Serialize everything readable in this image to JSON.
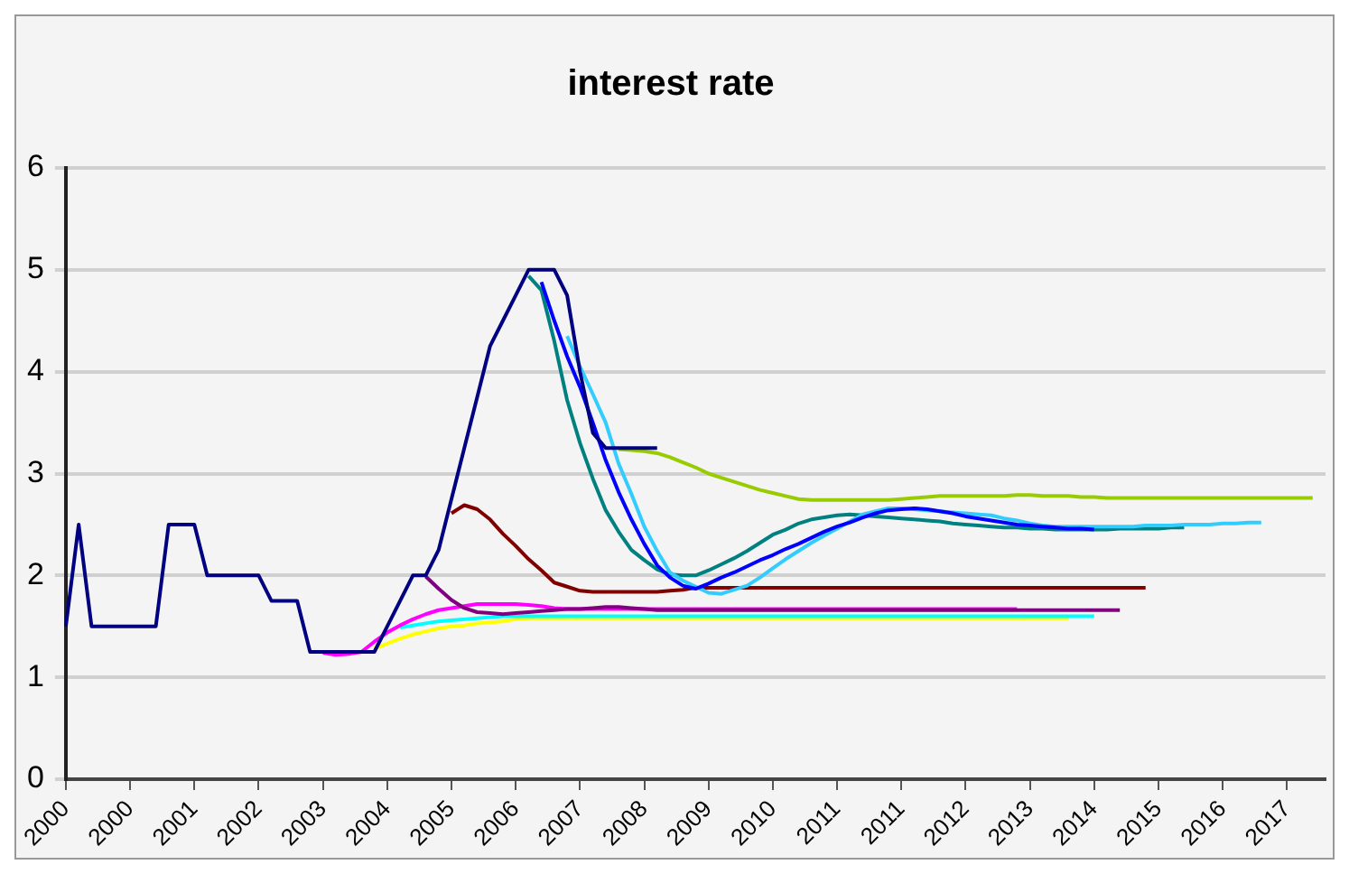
{
  "chart_data": {
    "type": "line",
    "title": "interest rate",
    "marker": "none",
    "grid": "y",
    "categories": [
      "2000",
      null,
      null,
      null,
      null,
      "2000",
      null,
      null,
      null,
      null,
      "2001",
      null,
      null,
      null,
      null,
      "2002",
      null,
      null,
      null,
      null,
      "2003",
      null,
      null,
      null,
      null,
      "2004",
      null,
      null,
      null,
      null,
      "2005",
      null,
      null,
      null,
      null,
      "2006",
      null,
      null,
      null,
      null,
      "2007",
      null,
      null,
      null,
      null,
      "2008",
      null,
      null,
      null,
      null,
      "2009",
      null,
      null,
      null,
      null,
      "2010",
      null,
      null,
      null,
      null,
      "2011",
      null,
      null,
      null,
      null,
      "2011",
      null,
      null,
      null,
      null,
      "2012",
      null,
      null,
      null,
      null,
      "2013",
      null,
      null,
      null,
      null,
      "2014",
      null,
      null,
      null,
      null,
      "2015",
      null,
      null,
      null,
      null,
      "2016",
      null,
      null,
      null,
      null,
      "2017",
      null,
      null,
      null
    ],
    "ylim": [
      0,
      6
    ],
    "yticks": [
      0,
      1,
      2,
      3,
      4,
      5,
      6
    ],
    "series": [
      {
        "color": "#000080",
        "values": [
          1.5,
          2.5,
          1.5,
          1.5,
          1.5,
          1.5,
          1.5,
          1.5,
          2.5,
          2.5,
          2.5,
          2,
          2,
          2,
          2,
          2,
          1.75,
          1.75,
          1.75,
          1.25,
          1.25,
          1.25,
          1.25,
          1.25,
          1.25,
          1.5,
          1.75,
          2,
          2,
          2.25,
          2.75,
          3.25,
          3.75,
          4.25,
          4.5,
          4.75,
          5,
          5,
          5,
          4.75,
          4,
          3.4,
          3.25,
          3.25,
          3.25,
          3.25,
          3.25,
          null,
          null,
          null,
          null,
          null,
          null,
          null,
          null,
          null,
          null,
          null,
          null,
          null,
          null,
          null,
          null,
          null,
          null,
          null,
          null,
          null,
          null,
          null,
          null,
          null,
          null,
          null,
          null,
          null,
          null,
          null,
          null,
          null,
          null,
          null,
          null,
          null,
          null,
          null,
          null,
          null,
          null,
          null,
          null,
          null,
          null,
          null,
          null,
          null,
          null,
          null,
          null
        ]
      },
      {
        "color": "#0000ff",
        "values": [
          null,
          null,
          null,
          null,
          null,
          null,
          null,
          null,
          null,
          null,
          null,
          null,
          null,
          null,
          null,
          null,
          null,
          null,
          null,
          null,
          null,
          null,
          null,
          null,
          null,
          null,
          null,
          null,
          null,
          null,
          null,
          null,
          null,
          null,
          null,
          null,
          null,
          4.88,
          4.5,
          4.15,
          3.85,
          3.5,
          3.13,
          2.82,
          2.55,
          2.31,
          2.1,
          1.98,
          1.9,
          1.87,
          1.92,
          1.98,
          2.03,
          2.09,
          2.15,
          2.2,
          2.26,
          2.31,
          2.37,
          2.43,
          2.48,
          2.52,
          2.57,
          2.61,
          2.64,
          2.65,
          2.66,
          2.65,
          2.63,
          2.61,
          2.58,
          2.56,
          2.54,
          2.52,
          2.5,
          2.49,
          2.48,
          2.47,
          2.46,
          2.46,
          2.45,
          null,
          null,
          null,
          null,
          null,
          null,
          null,
          null,
          null,
          null,
          null,
          null,
          null,
          null,
          null,
          null,
          null,
          null
        ]
      },
      {
        "color": "#33ccff",
        "values": [
          null,
          null,
          null,
          null,
          null,
          null,
          null,
          null,
          null,
          null,
          null,
          null,
          null,
          null,
          null,
          null,
          null,
          null,
          null,
          null,
          null,
          null,
          null,
          null,
          null,
          null,
          null,
          null,
          null,
          null,
          null,
          null,
          null,
          null,
          null,
          null,
          null,
          null,
          null,
          4.35,
          4.05,
          3.78,
          3.5,
          3.1,
          2.8,
          2.48,
          2.24,
          2.03,
          1.95,
          1.89,
          1.83,
          1.82,
          1.86,
          1.9,
          1.98,
          2.07,
          2.16,
          2.24,
          2.32,
          2.39,
          2.46,
          2.53,
          2.6,
          2.63,
          2.66,
          2.66,
          2.65,
          2.64,
          2.63,
          2.62,
          2.61,
          2.6,
          2.59,
          2.56,
          2.54,
          2.51,
          2.49,
          2.48,
          2.48,
          2.48,
          2.48,
          2.48,
          2.48,
          2.48,
          2.49,
          2.49,
          2.49,
          2.5,
          2.5,
          2.5,
          2.51,
          2.51,
          2.52,
          2.52,
          null,
          null,
          null,
          null,
          null
        ]
      },
      {
        "color": "#008080",
        "values": [
          null,
          null,
          null,
          null,
          null,
          null,
          null,
          null,
          null,
          null,
          null,
          null,
          null,
          null,
          null,
          null,
          null,
          null,
          null,
          null,
          null,
          null,
          null,
          null,
          null,
          null,
          null,
          null,
          null,
          null,
          null,
          null,
          null,
          null,
          null,
          null,
          4.94,
          4.8,
          4.3,
          3.72,
          3.3,
          2.95,
          2.64,
          2.43,
          2.25,
          2.15,
          2.06,
          2.01,
          2,
          2,
          2.05,
          2.11,
          2.17,
          2.24,
          2.32,
          2.4,
          2.45,
          2.51,
          2.55,
          2.57,
          2.59,
          2.6,
          2.59,
          2.58,
          2.57,
          2.56,
          2.55,
          2.54,
          2.53,
          2.51,
          2.5,
          2.49,
          2.48,
          2.47,
          2.47,
          2.46,
          2.46,
          2.45,
          2.45,
          2.45,
          2.45,
          2.45,
          2.46,
          2.46,
          2.46,
          2.46,
          2.47,
          2.47,
          null,
          null,
          null,
          null,
          null,
          null,
          null,
          null,
          null,
          null,
          null
        ]
      },
      {
        "color": "#99cc00",
        "values": [
          null,
          null,
          null,
          null,
          null,
          null,
          null,
          null,
          null,
          null,
          null,
          null,
          null,
          null,
          null,
          null,
          null,
          null,
          null,
          null,
          null,
          null,
          null,
          null,
          null,
          null,
          null,
          null,
          null,
          null,
          null,
          null,
          null,
          null,
          null,
          null,
          null,
          null,
          null,
          null,
          null,
          null,
          null,
          3.24,
          3.23,
          3.22,
          3.2,
          3.16,
          3.11,
          3.06,
          3,
          2.96,
          2.92,
          2.88,
          2.84,
          2.81,
          2.78,
          2.75,
          2.74,
          2.74,
          2.74,
          2.74,
          2.74,
          2.74,
          2.74,
          2.75,
          2.76,
          2.77,
          2.78,
          2.78,
          2.78,
          2.78,
          2.78,
          2.78,
          2.79,
          2.79,
          2.78,
          2.78,
          2.78,
          2.77,
          2.77,
          2.76,
          2.76,
          2.76,
          2.76,
          2.76,
          2.76,
          2.76,
          2.76,
          2.76,
          2.76,
          2.76,
          2.76,
          2.76,
          2.76,
          2.76,
          2.76,
          2.76,
          null
        ]
      },
      {
        "color": "#800000",
        "values": [
          null,
          null,
          null,
          null,
          null,
          null,
          null,
          null,
          null,
          null,
          null,
          null,
          null,
          null,
          null,
          null,
          null,
          null,
          null,
          null,
          null,
          null,
          null,
          null,
          null,
          null,
          null,
          null,
          null,
          null,
          2.61,
          2.69,
          2.65,
          2.55,
          2.41,
          2.29,
          2.16,
          2.05,
          1.93,
          1.89,
          1.85,
          1.84,
          1.84,
          1.84,
          1.84,
          1.84,
          1.84,
          1.85,
          1.86,
          1.88,
          1.88,
          1.88,
          1.88,
          1.88,
          1.88,
          1.88,
          1.88,
          1.88,
          1.88,
          1.88,
          1.88,
          1.88,
          1.88,
          1.88,
          1.88,
          1.88,
          1.88,
          1.88,
          1.88,
          1.88,
          1.88,
          1.88,
          1.88,
          1.88,
          1.88,
          1.88,
          1.88,
          1.88,
          1.88,
          1.88,
          1.88,
          1.88,
          1.88,
          1.88,
          1.88,
          null,
          null,
          null,
          null,
          null,
          null,
          null,
          null,
          null,
          null,
          null,
          null,
          null,
          null
        ]
      },
      {
        "color": "#800080",
        "values": [
          null,
          null,
          null,
          null,
          null,
          null,
          null,
          null,
          null,
          null,
          null,
          null,
          null,
          null,
          null,
          null,
          null,
          null,
          null,
          null,
          null,
          null,
          null,
          null,
          null,
          null,
          null,
          null,
          1.99,
          1.87,
          1.76,
          1.68,
          1.64,
          1.63,
          1.62,
          1.63,
          1.64,
          1.65,
          1.66,
          1.67,
          1.67,
          1.68,
          1.69,
          1.69,
          1.68,
          1.67,
          1.66,
          1.66,
          1.66,
          1.66,
          1.66,
          1.66,
          1.66,
          1.66,
          1.66,
          1.66,
          1.66,
          1.66,
          1.66,
          1.66,
          1.66,
          1.66,
          1.66,
          1.66,
          1.66,
          1.66,
          1.66,
          1.66,
          1.66,
          1.66,
          1.66,
          1.66,
          1.66,
          1.66,
          1.66,
          1.66,
          1.66,
          1.66,
          1.66,
          1.66,
          1.66,
          1.66,
          1.66,
          null,
          null,
          null,
          null,
          null,
          null,
          null,
          null,
          null,
          null,
          null,
          null,
          null,
          null,
          null,
          null
        ]
      },
      {
        "color": "#ff00ff",
        "values": [
          null,
          null,
          null,
          null,
          null,
          null,
          null,
          null,
          null,
          null,
          null,
          null,
          null,
          null,
          null,
          null,
          null,
          null,
          null,
          null,
          1.24,
          1.22,
          1.23,
          1.25,
          1.35,
          1.44,
          1.51,
          1.57,
          1.62,
          1.66,
          1.68,
          1.7,
          1.72,
          1.72,
          1.72,
          1.72,
          1.71,
          1.7,
          1.68,
          1.67,
          1.67,
          1.67,
          1.67,
          1.67,
          1.67,
          1.67,
          1.67,
          1.67,
          1.67,
          1.67,
          1.67,
          1.67,
          1.67,
          1.67,
          1.67,
          1.67,
          1.67,
          1.67,
          1.67,
          1.67,
          1.67,
          1.67,
          1.67,
          1.67,
          1.67,
          1.67,
          1.67,
          1.67,
          1.67,
          1.67,
          1.67,
          1.67,
          1.67,
          1.67,
          1.67,
          null,
          null,
          null,
          null,
          null,
          null,
          null,
          null,
          null,
          null,
          null,
          null,
          null,
          null,
          null,
          null,
          null,
          null,
          null,
          null,
          null,
          null,
          null,
          null
        ]
      },
      {
        "color": "#00ffff",
        "values": [
          null,
          null,
          null,
          null,
          null,
          null,
          null,
          null,
          null,
          null,
          null,
          null,
          null,
          null,
          null,
          null,
          null,
          null,
          null,
          null,
          null,
          null,
          null,
          null,
          null,
          null,
          1.49,
          1.51,
          1.53,
          1.55,
          1.56,
          1.57,
          1.58,
          1.59,
          1.6,
          1.6,
          1.6,
          1.6,
          1.6,
          1.6,
          1.6,
          1.6,
          1.6,
          1.6,
          1.6,
          1.6,
          1.6,
          1.6,
          1.6,
          1.6,
          1.6,
          1.6,
          1.6,
          1.6,
          1.6,
          1.6,
          1.6,
          1.6,
          1.6,
          1.6,
          1.6,
          1.6,
          1.6,
          1.6,
          1.6,
          1.6,
          1.6,
          1.6,
          1.6,
          1.6,
          1.6,
          1.6,
          1.6,
          1.6,
          1.6,
          1.6,
          1.6,
          1.6,
          1.6,
          1.6,
          1.6,
          null,
          null,
          null,
          null,
          null,
          null,
          null,
          null,
          null,
          null,
          null,
          null,
          null,
          null,
          null,
          null,
          null,
          null
        ]
      },
      {
        "color": "#ffff00",
        "values": [
          null,
          null,
          null,
          null,
          null,
          null,
          null,
          null,
          null,
          null,
          null,
          null,
          null,
          null,
          null,
          null,
          null,
          null,
          null,
          null,
          null,
          null,
          null,
          null,
          1.28,
          1.33,
          1.38,
          1.42,
          1.45,
          1.48,
          1.5,
          1.51,
          1.53,
          1.54,
          1.55,
          1.57,
          1.58,
          1.58,
          1.58,
          1.58,
          1.58,
          1.58,
          1.58,
          1.58,
          1.58,
          1.58,
          1.58,
          1.58,
          1.58,
          1.58,
          1.58,
          1.58,
          1.58,
          1.58,
          1.58,
          1.58,
          1.58,
          1.58,
          1.58,
          1.58,
          1.58,
          1.58,
          1.58,
          1.58,
          1.58,
          1.58,
          1.58,
          1.58,
          1.58,
          1.58,
          1.58,
          1.58,
          1.58,
          1.58,
          1.58,
          1.58,
          1.58,
          1.58,
          1.58,
          null,
          null,
          null,
          null,
          null,
          null,
          null,
          null,
          null,
          null,
          null,
          null,
          null,
          null,
          null,
          null,
          null,
          null,
          null,
          null
        ]
      }
    ]
  }
}
